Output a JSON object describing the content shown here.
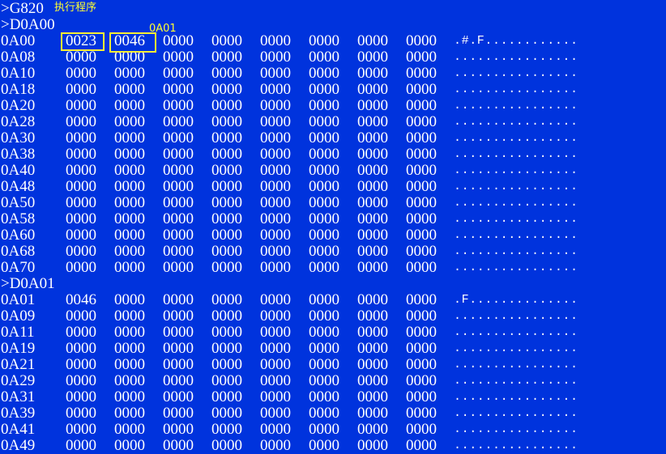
{
  "header": {
    "command_go": ">G820",
    "go_note": "执行程序"
  },
  "annotation": {
    "address_label": "0A01"
  },
  "dump1": {
    "command": ">D0A00",
    "rows": [
      {
        "addr": "0A00",
        "words": [
          "0023",
          "0046",
          "0000",
          "0000",
          "0000",
          "0000",
          "0000",
          "0000"
        ],
        "ascii": ".#.F............"
      },
      {
        "addr": "0A08",
        "words": [
          "0000",
          "0000",
          "0000",
          "0000",
          "0000",
          "0000",
          "0000",
          "0000"
        ],
        "ascii": "................"
      },
      {
        "addr": "0A10",
        "words": [
          "0000",
          "0000",
          "0000",
          "0000",
          "0000",
          "0000",
          "0000",
          "0000"
        ],
        "ascii": "................"
      },
      {
        "addr": "0A18",
        "words": [
          "0000",
          "0000",
          "0000",
          "0000",
          "0000",
          "0000",
          "0000",
          "0000"
        ],
        "ascii": "................"
      },
      {
        "addr": "0A20",
        "words": [
          "0000",
          "0000",
          "0000",
          "0000",
          "0000",
          "0000",
          "0000",
          "0000"
        ],
        "ascii": "................"
      },
      {
        "addr": "0A28",
        "words": [
          "0000",
          "0000",
          "0000",
          "0000",
          "0000",
          "0000",
          "0000",
          "0000"
        ],
        "ascii": "................"
      },
      {
        "addr": "0A30",
        "words": [
          "0000",
          "0000",
          "0000",
          "0000",
          "0000",
          "0000",
          "0000",
          "0000"
        ],
        "ascii": "................"
      },
      {
        "addr": "0A38",
        "words": [
          "0000",
          "0000",
          "0000",
          "0000",
          "0000",
          "0000",
          "0000",
          "0000"
        ],
        "ascii": "................"
      },
      {
        "addr": "0A40",
        "words": [
          "0000",
          "0000",
          "0000",
          "0000",
          "0000",
          "0000",
          "0000",
          "0000"
        ],
        "ascii": "................"
      },
      {
        "addr": "0A48",
        "words": [
          "0000",
          "0000",
          "0000",
          "0000",
          "0000",
          "0000",
          "0000",
          "0000"
        ],
        "ascii": "................"
      },
      {
        "addr": "0A50",
        "words": [
          "0000",
          "0000",
          "0000",
          "0000",
          "0000",
          "0000",
          "0000",
          "0000"
        ],
        "ascii": "................"
      },
      {
        "addr": "0A58",
        "words": [
          "0000",
          "0000",
          "0000",
          "0000",
          "0000",
          "0000",
          "0000",
          "0000"
        ],
        "ascii": "................"
      },
      {
        "addr": "0A60",
        "words": [
          "0000",
          "0000",
          "0000",
          "0000",
          "0000",
          "0000",
          "0000",
          "0000"
        ],
        "ascii": "................"
      },
      {
        "addr": "0A68",
        "words": [
          "0000",
          "0000",
          "0000",
          "0000",
          "0000",
          "0000",
          "0000",
          "0000"
        ],
        "ascii": "................"
      },
      {
        "addr": "0A70",
        "words": [
          "0000",
          "0000",
          "0000",
          "0000",
          "0000",
          "0000",
          "0000",
          "0000"
        ],
        "ascii": "................"
      }
    ]
  },
  "dump2": {
    "command": ">D0A01",
    "rows": [
      {
        "addr": "0A01",
        "words": [
          "0046",
          "0000",
          "0000",
          "0000",
          "0000",
          "0000",
          "0000",
          "0000"
        ],
        "ascii": ".F.............."
      },
      {
        "addr": "0A09",
        "words": [
          "0000",
          "0000",
          "0000",
          "0000",
          "0000",
          "0000",
          "0000",
          "0000"
        ],
        "ascii": "................"
      },
      {
        "addr": "0A11",
        "words": [
          "0000",
          "0000",
          "0000",
          "0000",
          "0000",
          "0000",
          "0000",
          "0000"
        ],
        "ascii": "................"
      },
      {
        "addr": "0A19",
        "words": [
          "0000",
          "0000",
          "0000",
          "0000",
          "0000",
          "0000",
          "0000",
          "0000"
        ],
        "ascii": "................"
      },
      {
        "addr": "0A21",
        "words": [
          "0000",
          "0000",
          "0000",
          "0000",
          "0000",
          "0000",
          "0000",
          "0000"
        ],
        "ascii": "................"
      },
      {
        "addr": "0A29",
        "words": [
          "0000",
          "0000",
          "0000",
          "0000",
          "0000",
          "0000",
          "0000",
          "0000"
        ],
        "ascii": "................"
      },
      {
        "addr": "0A31",
        "words": [
          "0000",
          "0000",
          "0000",
          "0000",
          "0000",
          "0000",
          "0000",
          "0000"
        ],
        "ascii": "................"
      },
      {
        "addr": "0A39",
        "words": [
          "0000",
          "0000",
          "0000",
          "0000",
          "0000",
          "0000",
          "0000",
          "0000"
        ],
        "ascii": "................"
      },
      {
        "addr": "0A41",
        "words": [
          "0000",
          "0000",
          "0000",
          "0000",
          "0000",
          "0000",
          "0000",
          "0000"
        ],
        "ascii": "................"
      },
      {
        "addr": "0A49",
        "words": [
          "0000",
          "0000",
          "0000",
          "0000",
          "0000",
          "0000",
          "0000",
          "0000"
        ],
        "ascii": "................"
      }
    ]
  }
}
